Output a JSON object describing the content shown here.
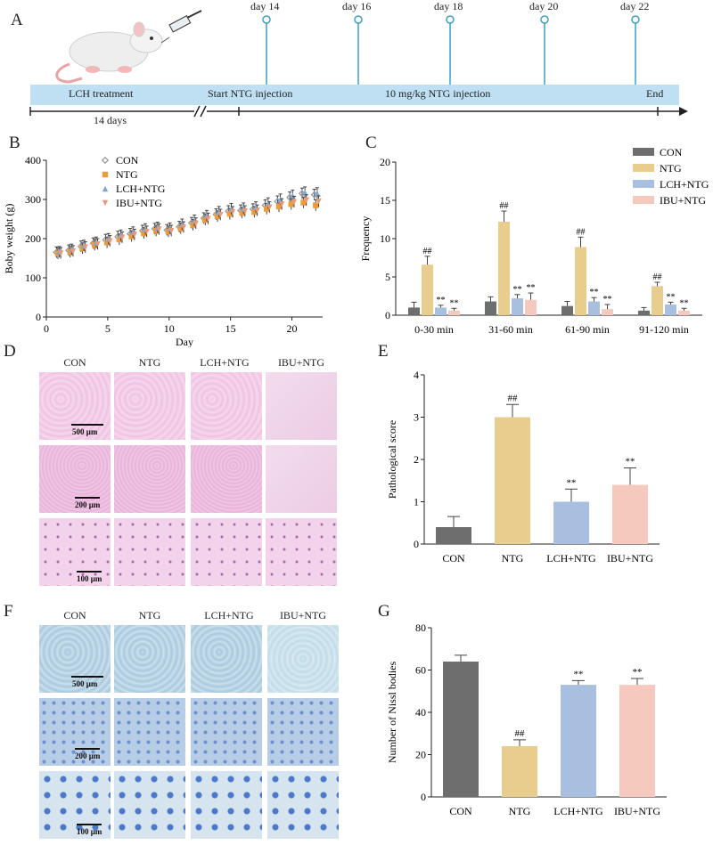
{
  "panels": {
    "A": "A",
    "B": "B",
    "C": "C",
    "D": "D",
    "E": "E",
    "F": "F",
    "G": "G"
  },
  "panel_a": {
    "days": [
      "day 14",
      "day 16",
      "day 18",
      "day 20",
      "day 22"
    ],
    "lch_treatment": "LCH treatment",
    "start_ntg": "Start NTG injection",
    "dose": "10 mg/kg NTG injection",
    "end": "End",
    "duration": "14 days",
    "band_color": "#bfe0f3",
    "pin_color": "#3d9fc4"
  },
  "colors": {
    "CON": "#6e6e6e",
    "NTG": "#e8cd8f",
    "LCH+NTG": "#a9bfe0",
    "IBU+NTG": "#f5c9bd"
  },
  "he_panel": {
    "headers": [
      "CON",
      "NTG",
      "LCH+NTG",
      "IBU+NTG"
    ],
    "scales": [
      "500 μm",
      "200 μm",
      "100 μm"
    ]
  },
  "nissl_panel": {
    "headers": [
      "CON",
      "NTG",
      "LCH+NTG",
      "IBU+NTG"
    ],
    "scales": [
      "500 μm",
      "200 μm",
      "100 μm"
    ]
  },
  "chart_data": [
    {
      "id": "B",
      "type": "scatter",
      "xlabel": "Day",
      "ylabel": "Boby weight (g)",
      "xlim": [
        0,
        22.5
      ],
      "ylim": [
        0,
        400
      ],
      "xticks": [
        "0",
        "5",
        "10",
        "15",
        "20"
      ],
      "yticks": [
        "0",
        "100",
        "200",
        "300",
        "400"
      ],
      "x": [
        1,
        2,
        3,
        4,
        5,
        6,
        7,
        8,
        9,
        10,
        11,
        12,
        13,
        14,
        15,
        16,
        17,
        18,
        19,
        20,
        21,
        22
      ],
      "series": [
        {
          "name": "CON",
          "marker": "diamond",
          "values": [
            165,
            170,
            180,
            188,
            197,
            205,
            212,
            220,
            225,
            222,
            230,
            240,
            252,
            262,
            270,
            272,
            275,
            285,
            295,
            305,
            315,
            312
          ]
        },
        {
          "name": "NTG",
          "marker": "square",
          "values": [
            162,
            166,
            175,
            184,
            190,
            198,
            206,
            214,
            220,
            218,
            226,
            235,
            248,
            257,
            263,
            266,
            268,
            276,
            282,
            288,
            292,
            285
          ]
        },
        {
          "name": "LCH+NTG",
          "marker": "triangle-up",
          "values": [
            166,
            172,
            182,
            190,
            199,
            208,
            216,
            224,
            228,
            226,
            236,
            246,
            258,
            268,
            276,
            277,
            280,
            290,
            300,
            310,
            318,
            316
          ]
        },
        {
          "name": "IBU+NTG",
          "marker": "triangle-down",
          "values": [
            163,
            168,
            178,
            186,
            194,
            203,
            210,
            218,
            224,
            220,
            229,
            239,
            251,
            261,
            268,
            270,
            272,
            280,
            288,
            294,
            298,
            295
          ]
        }
      ]
    },
    {
      "id": "C",
      "type": "bar",
      "xlabel": "",
      "ylabel": "Frequency",
      "ylim": [
        0,
        20
      ],
      "yticks": [
        "0",
        "5",
        "10",
        "15",
        "20"
      ],
      "categories": [
        "0-30 min",
        "31-60 min",
        "61-90 min",
        "91-120 min"
      ],
      "series": [
        {
          "name": "CON",
          "values": [
            1.0,
            1.8,
            1.2,
            0.6
          ],
          "errors": [
            0.7,
            0.6,
            0.6,
            0.4
          ],
          "labels": [
            "",
            "",
            "",
            ""
          ]
        },
        {
          "name": "NTG",
          "values": [
            6.6,
            12.2,
            8.9,
            3.8
          ],
          "errors": [
            1.1,
            1.4,
            1.3,
            0.5
          ],
          "labels": [
            "##",
            "##",
            "##",
            "##"
          ]
        },
        {
          "name": "LCH+NTG",
          "values": [
            1.0,
            2.2,
            1.8,
            1.4
          ],
          "errors": [
            0.3,
            0.5,
            0.5,
            0.3
          ],
          "labels": [
            "**",
            "**",
            "**",
            "**"
          ]
        },
        {
          "name": "IBU+NTG",
          "values": [
            0.6,
            2.0,
            0.8,
            0.6
          ],
          "errors": [
            0.3,
            0.9,
            0.6,
            0.3
          ],
          "labels": [
            "**",
            "**",
            "**",
            "**"
          ]
        }
      ]
    },
    {
      "id": "E",
      "type": "bar",
      "xlabel": "",
      "ylabel": "Pathological score",
      "ylim": [
        0,
        4
      ],
      "yticks": [
        "0",
        "1",
        "2",
        "3",
        "4"
      ],
      "categories": [
        "CON",
        "NTG",
        "LCH+NTG",
        "IBU+NTG"
      ],
      "values": [
        0.4,
        3.0,
        1.0,
        1.4
      ],
      "errors": [
        0.25,
        0.3,
        0.3,
        0.4
      ],
      "labels": [
        "",
        "##",
        "**",
        "**"
      ]
    },
    {
      "id": "G",
      "type": "bar",
      "xlabel": "",
      "ylabel": "Number of Nissl bodies",
      "ylim": [
        0,
        80
      ],
      "yticks": [
        "0",
        "20",
        "40",
        "60",
        "80"
      ],
      "categories": [
        "CON",
        "NTG",
        "LCH+NTG",
        "IBU+NTG"
      ],
      "values": [
        64,
        24,
        53,
        53
      ],
      "errors": [
        3,
        3,
        2,
        3
      ],
      "labels": [
        "",
        "##",
        "**",
        "**"
      ]
    }
  ]
}
